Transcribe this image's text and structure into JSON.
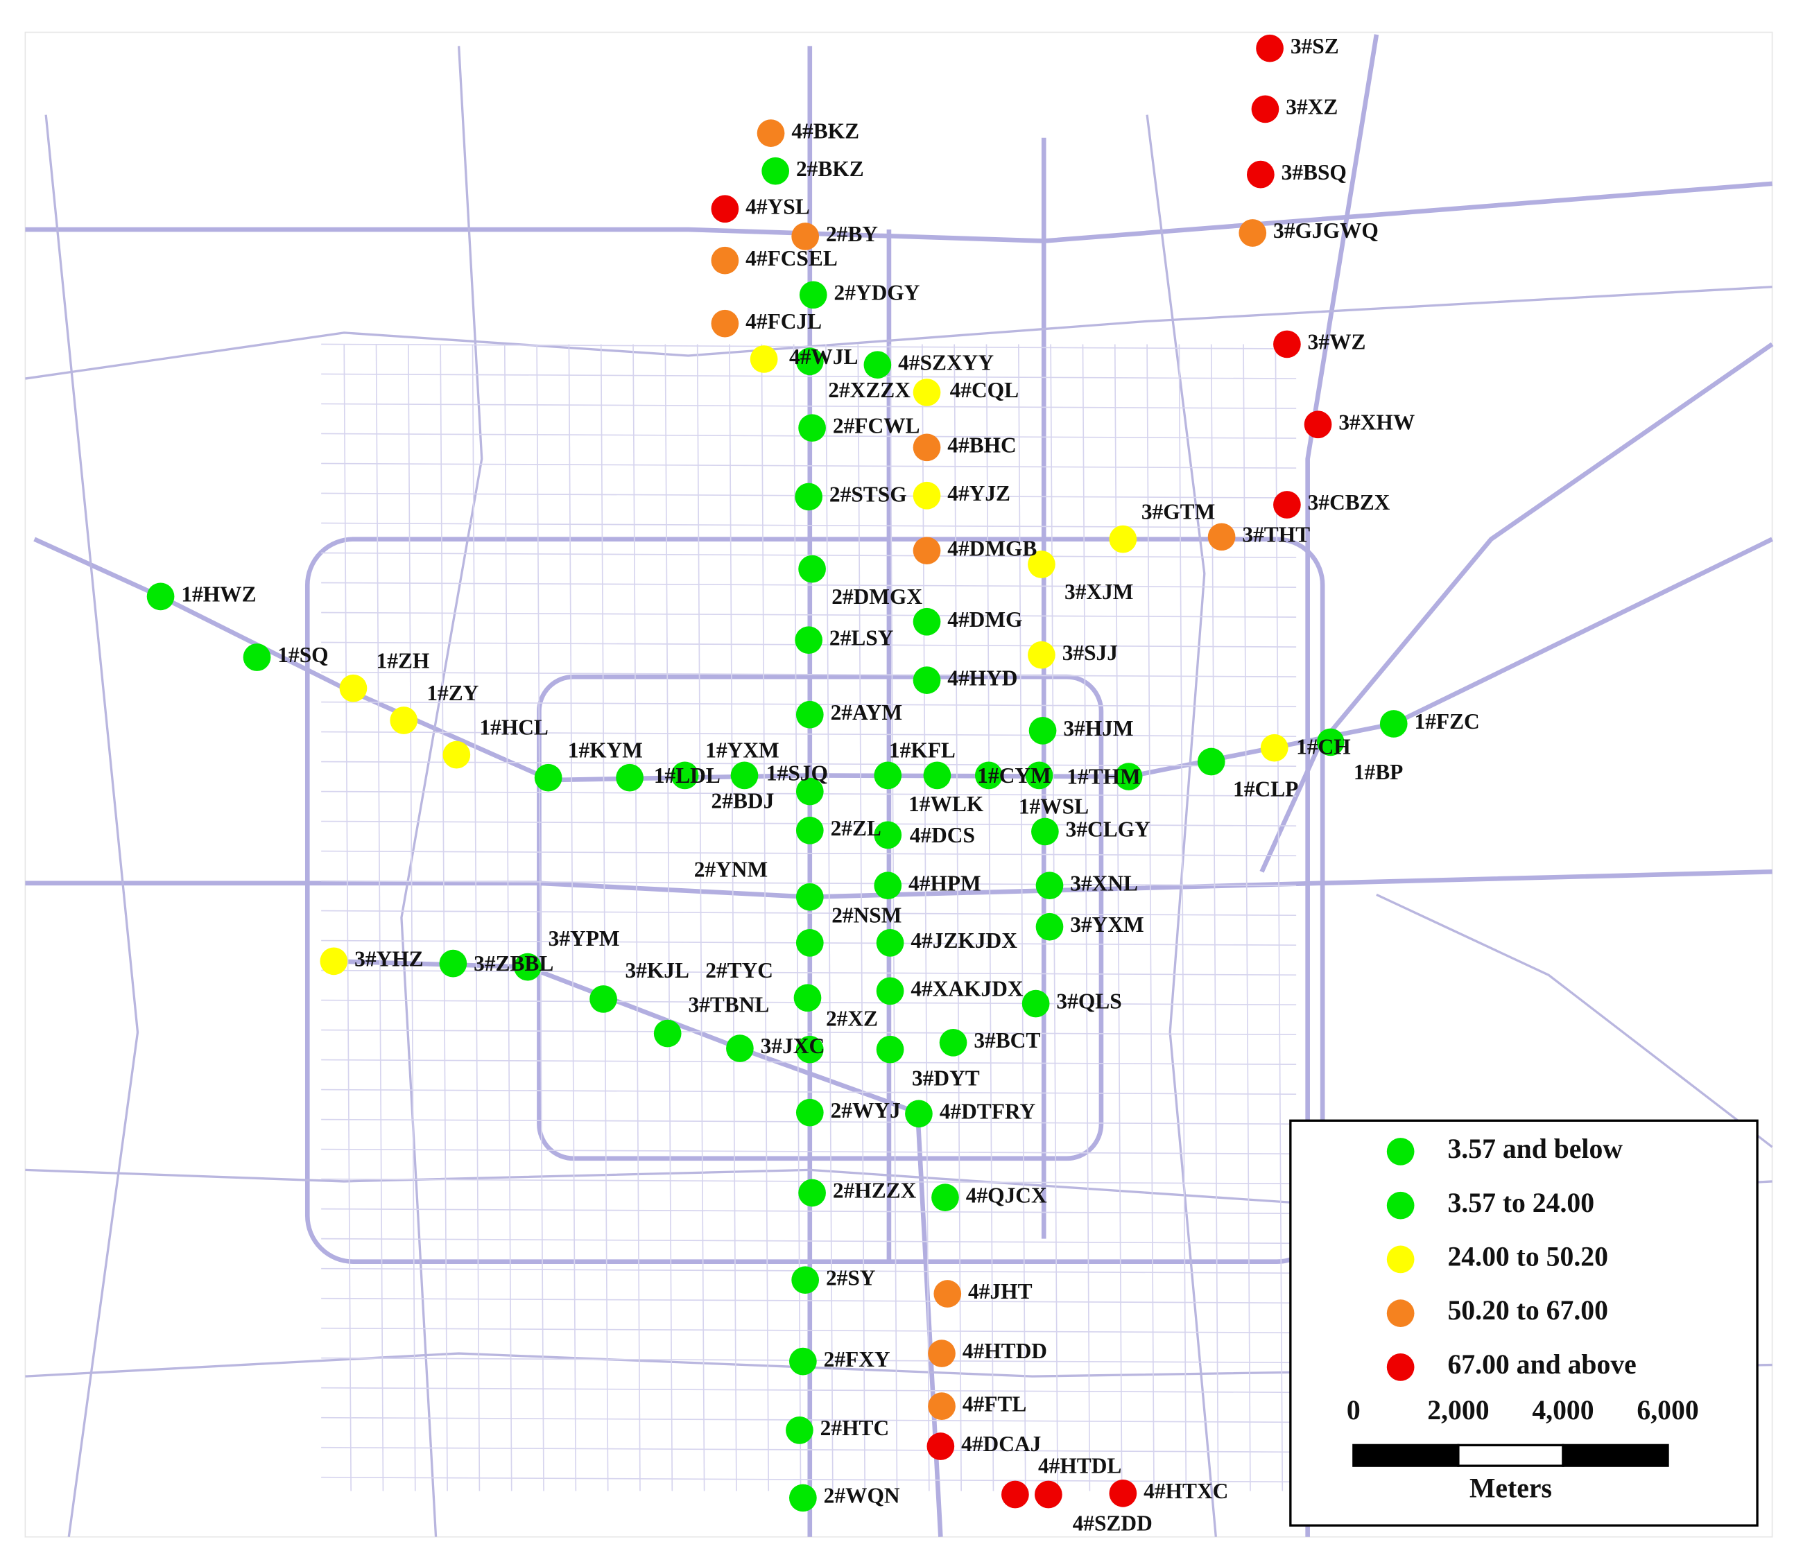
{
  "stations": [
    {
      "label": "3#SZ",
      "level": 4
    },
    {
      "label": "3#XZ",
      "level": 4
    },
    {
      "label": "3#BSQ",
      "level": 4
    },
    {
      "label": "3#WZ",
      "level": 4
    },
    {
      "label": "3#XHW",
      "level": 4
    },
    {
      "label": "3#CBZX",
      "level": 4
    },
    {
      "label": "4#YSL",
      "level": 4
    },
    {
      "label": "4#DCAJ",
      "level": 4
    },
    {
      "label": "4#HTDL",
      "level": 4
    },
    {
      "label": "4#SZDD",
      "level": 4
    },
    {
      "label": "4#HTXC",
      "level": 4
    },
    {
      "label": "4#BKZ",
      "level": 3
    },
    {
      "label": "2#BY",
      "level": 3
    },
    {
      "label": "4#FCSEL",
      "level": 3
    },
    {
      "label": "4#FCJL",
      "level": 3
    },
    {
      "label": "3#GJGWQ",
      "level": 3
    },
    {
      "label": "4#BHC",
      "level": 3
    },
    {
      "label": "4#DMGB",
      "level": 3
    },
    {
      "label": "3#THT",
      "level": 3
    },
    {
      "label": "4#JHT",
      "level": 3
    },
    {
      "label": "4#HTDD",
      "level": 3
    },
    {
      "label": "4#FTL",
      "level": 3
    },
    {
      "label": "4#WJL",
      "level": 2
    },
    {
      "label": "4#CQL",
      "level": 2
    },
    {
      "label": "4#YJZ",
      "level": 2
    },
    {
      "label": "3#GTM",
      "level": 2
    },
    {
      "label": "3#XJM",
      "level": 2
    },
    {
      "label": "3#SJJ",
      "level": 2
    },
    {
      "label": "1#ZH",
      "level": 2
    },
    {
      "label": "1#ZY",
      "level": 2
    },
    {
      "label": "1#HCL",
      "level": 2
    },
    {
      "label": "1#CLP",
      "level": 2
    },
    {
      "label": "3#YHZ",
      "level": 2
    },
    {
      "label": "2#BKZ",
      "level": 1
    },
    {
      "label": "2#YDGY",
      "level": 1
    },
    {
      "label": "2#XZZX",
      "level": 1
    },
    {
      "label": "4#SZXYY",
      "level": 1
    },
    {
      "label": "2#FCWL",
      "level": 1
    },
    {
      "label": "2#STSG",
      "level": 1
    },
    {
      "label": "2#DMGX",
      "level": 1
    },
    {
      "label": "2#LSY",
      "level": 1
    },
    {
      "label": "4#DMG",
      "level": 1
    },
    {
      "label": "4#HYD",
      "level": 1
    },
    {
      "label": "2#AYM",
      "level": 1
    },
    {
      "label": "1#HWZ",
      "level": 1
    },
    {
      "label": "1#SQ",
      "level": 1
    },
    {
      "label": "1#KYM",
      "level": 1
    },
    {
      "label": "1#LDL",
      "level": 1
    },
    {
      "label": "1#YXM",
      "level": 1
    },
    {
      "label": "1#SJQ",
      "level": 1
    },
    {
      "label": "2#BDJ",
      "level": 1
    },
    {
      "label": "1#KFL",
      "level": 1
    },
    {
      "label": "1#WLK",
      "level": 1
    },
    {
      "label": "1#CYM",
      "level": 1
    },
    {
      "label": "1#WSL",
      "level": 1
    },
    {
      "label": "1#THM",
      "level": 1
    },
    {
      "label": "3#HJM",
      "level": 1
    },
    {
      "label": "1#CH",
      "level": 1
    },
    {
      "label": "1#FZC",
      "level": 1
    },
    {
      "label": "1#BP",
      "level": 1
    },
    {
      "label": "2#ZL",
      "level": 1
    },
    {
      "label": "4#DCS",
      "level": 1
    },
    {
      "label": "3#CLGY",
      "level": 1
    },
    {
      "label": "2#YNM",
      "level": 1
    },
    {
      "label": "4#HPM",
      "level": 1
    },
    {
      "label": "3#XNL",
      "level": 1
    },
    {
      "label": "2#NSM",
      "level": 1
    },
    {
      "label": "4#JZKJDX",
      "level": 1
    },
    {
      "label": "3#YXM",
      "level": 1
    },
    {
      "label": "3#ZBBL",
      "level": 1
    },
    {
      "label": "3#YPM",
      "level": 1
    },
    {
      "label": "3#KJL",
      "level": 1
    },
    {
      "label": "2#TYC",
      "level": 1
    },
    {
      "label": "3#TBNL",
      "level": 1
    },
    {
      "label": "3#JXC",
      "level": 1
    },
    {
      "label": "2#XZ",
      "level": 1
    },
    {
      "label": "4#XAKJDX",
      "level": 1
    },
    {
      "label": "3#QLS",
      "level": 1
    },
    {
      "label": "3#BCT",
      "level": 1
    },
    {
      "label": "3#DYT",
      "level": 1
    },
    {
      "label": "2#WYJ",
      "level": 1
    },
    {
      "label": "4#DTFRY",
      "level": 1
    },
    {
      "label": "2#HZZX",
      "level": 1
    },
    {
      "label": "4#QJCX",
      "level": 1
    },
    {
      "label": "2#SY",
      "level": 1
    },
    {
      "label": "2#FXY",
      "level": 1
    },
    {
      "label": "2#HTC",
      "level": 1
    },
    {
      "label": "2#WQN",
      "level": 1
    }
  ],
  "legend": {
    "items": [
      {
        "label": "3.57 and below",
        "color": "#00e800"
      },
      {
        "label": "3.57 to 24.00",
        "color": "#00e800"
      },
      {
        "label": "24.00 to 50.20",
        "color": "#ffff00"
      },
      {
        "label": "50.20 to 67.00",
        "color": "#f5821f"
      },
      {
        "label": "67.00 and above",
        "color": "#ee0000"
      }
    ],
    "scale": {
      "ticks": [
        0,
        {
          "value": 2000,
          "label": "2,000"
        },
        {
          "value": 4000,
          "label": "4,000"
        },
        {
          "value": 6000,
          "label": "6,000"
        }
      ],
      "unit": "Meters"
    }
  }
}
